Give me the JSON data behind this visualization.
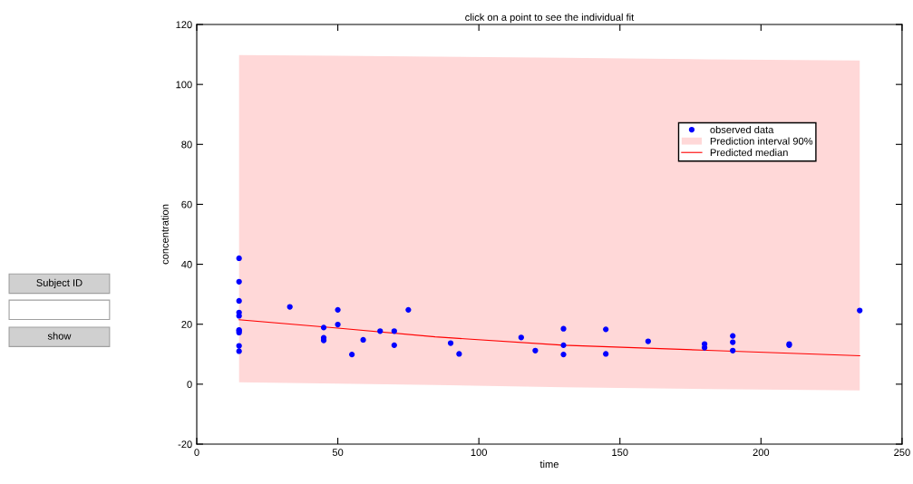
{
  "chart_data": {
    "type": "scatter",
    "title": "click on a point to see the individual fit",
    "xlabel": "time",
    "ylabel": "concentration",
    "xlim": [
      0,
      250
    ],
    "xticks": [
      0,
      50,
      100,
      150,
      200,
      250
    ],
    "ylim": [
      -20,
      120
    ],
    "yticks": [
      -20,
      0,
      20,
      40,
      60,
      80,
      100,
      120
    ],
    "grid": false,
    "legend": "right",
    "series": [
      {
        "name": "observed data",
        "marker": "circle",
        "color": "#0000ff",
        "x": [
          15,
          15,
          15,
          15,
          15,
          15,
          15,
          15,
          15,
          15,
          33,
          45,
          45,
          45,
          50,
          50,
          55,
          59,
          65,
          70,
          70,
          75,
          90,
          93,
          115,
          120,
          130,
          130,
          130,
          145,
          145,
          160,
          180,
          180,
          190,
          190,
          190,
          210,
          210,
          235
        ],
        "values": [
          42.0,
          34.2,
          27.8,
          23.9,
          22.8,
          18.1,
          17.8,
          17.2,
          12.8,
          11.0,
          25.8,
          18.9,
          15.5,
          14.6,
          24.8,
          19.9,
          9.9,
          14.8,
          17.7,
          17.7,
          13.0,
          24.8,
          13.7,
          10.1,
          15.6,
          11.2,
          18.5,
          13.0,
          9.9,
          18.3,
          10.1,
          14.3,
          13.4,
          12.2,
          16.1,
          14.0,
          11.2,
          13.4,
          13.0,
          24.6
        ]
      },
      {
        "name": "Prediction interval 90%",
        "type": "line",
        "color": "#ffd8d8",
        "x": [
          15,
          50,
          84.5,
          130,
          181,
          235
        ],
        "values": [
          null,
          null,
          null,
          null,
          null,
          null
        ],
        "lower": [
          0.6,
          0.2,
          -0.3,
          -1.0,
          -1.6,
          -2.1
        ],
        "upper": [
          109.8,
          109.6,
          109.3,
          108.9,
          108.4,
          108.0
        ]
      },
      {
        "name": "Predicted median",
        "type": "line",
        "color": "#ff0000",
        "x": [
          15,
          50,
          84.5,
          130,
          181,
          235
        ],
        "values": [
          21.5,
          18.7,
          15.8,
          13.0,
          11.3,
          9.5
        ]
      }
    ],
    "annotations": [
      "Subject ID",
      "show"
    ]
  }
}
